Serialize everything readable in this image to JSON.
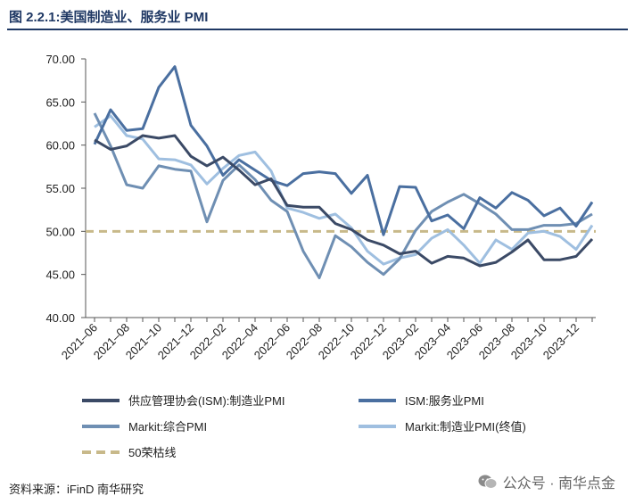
{
  "header": {
    "title": "图 2.2.1:美国制造业、服务业 PMI"
  },
  "footer": {
    "source": "资料来源：iFinD 南华研究",
    "watermark": "公众号 · 南华点金"
  },
  "chart_data": {
    "type": "line",
    "ylim": [
      40,
      70
    ],
    "yticks": [
      "40.00",
      "45.00",
      "50.00",
      "55.00",
      "60.00",
      "65.00",
      "70.00"
    ],
    "x_tick_labels": [
      "2021–06",
      "2021–08",
      "2021–10",
      "2021–12",
      "2022–02",
      "2022–04",
      "2022–06",
      "2022–08",
      "2022–10",
      "2022–12",
      "2023–02",
      "2023–04",
      "2023–06",
      "2023–08",
      "2023–10",
      "2023–12"
    ],
    "x_months": [
      "2021-06",
      "2021-07",
      "2021-08",
      "2021-09",
      "2021-10",
      "2021-11",
      "2021-12",
      "2022-01",
      "2022-02",
      "2022-03",
      "2022-04",
      "2022-05",
      "2022-06",
      "2022-07",
      "2022-08",
      "2022-09",
      "2022-10",
      "2022-11",
      "2022-12",
      "2023-01",
      "2023-02",
      "2023-03",
      "2023-04",
      "2023-05",
      "2023-06",
      "2023-07",
      "2023-08",
      "2023-09",
      "2023-10",
      "2023-11",
      "2023-12",
      "2024-01"
    ],
    "series": [
      {
        "name": "供应管理协会(ISM):制造业PMI",
        "color": "#3b4a66",
        "values": [
          60.6,
          59.5,
          59.9,
          61.1,
          60.8,
          61.1,
          58.7,
          57.6,
          58.6,
          57.1,
          55.4,
          56.1,
          53.0,
          52.8,
          52.8,
          50.9,
          50.2,
          49.0,
          48.4,
          47.4,
          47.7,
          46.3,
          47.1,
          46.9,
          46.0,
          46.4,
          47.6,
          49.0,
          46.7,
          46.7,
          47.1,
          49.1
        ]
      },
      {
        "name": "ISM:服务业PMI",
        "color": "#4a6fa0",
        "values": [
          60.1,
          64.1,
          61.7,
          61.9,
          66.7,
          69.1,
          62.3,
          59.9,
          56.5,
          58.3,
          57.1,
          55.9,
          55.3,
          56.7,
          56.9,
          56.7,
          54.4,
          56.5,
          49.6,
          55.2,
          55.1,
          51.2,
          51.9,
          50.3,
          53.9,
          52.7,
          54.5,
          53.6,
          51.8,
          52.7,
          50.6,
          53.4
        ]
      },
      {
        "name": "Markit:综合PMI",
        "color": "#6f8fb3",
        "values": [
          63.7,
          59.9,
          55.4,
          55.0,
          57.6,
          57.2,
          57.0,
          51.1,
          55.9,
          57.7,
          56.0,
          53.6,
          52.3,
          47.7,
          44.6,
          49.5,
          48.2,
          46.4,
          45.0,
          46.8,
          50.1,
          52.3,
          53.4,
          54.3,
          53.2,
          52.0,
          50.2,
          50.2,
          50.7,
          50.7,
          50.9,
          52.0
        ]
      },
      {
        "name": "Markit:制造业PMI(终值)",
        "color": "#9fbfe0",
        "values": [
          62.1,
          63.4,
          61.1,
          60.7,
          58.4,
          58.3,
          57.7,
          55.5,
          57.3,
          58.8,
          59.2,
          57.0,
          52.7,
          52.2,
          51.5,
          52.0,
          50.4,
          47.7,
          46.2,
          46.9,
          47.3,
          49.2,
          50.2,
          48.4,
          46.3,
          49.0,
          47.9,
          49.8,
          50.0,
          49.4,
          47.9,
          50.7
        ]
      }
    ],
    "reference": {
      "name": "50荣枯线",
      "value": 50,
      "color": "#c8b98a"
    },
    "legend": [
      {
        "label": "供应管理协会(ISM):制造业PMI",
        "color": "#3b4a66",
        "dashed": false
      },
      {
        "label": "ISM:服务业PMI",
        "color": "#4a6fa0",
        "dashed": false
      },
      {
        "label": "Markit:综合PMI",
        "color": "#6f8fb3",
        "dashed": false
      },
      {
        "label": "Markit:制造业PMI(终值)",
        "color": "#9fbfe0",
        "dashed": false
      },
      {
        "label": "50荣枯线",
        "color": "#c8b98a",
        "dashed": true
      }
    ]
  }
}
